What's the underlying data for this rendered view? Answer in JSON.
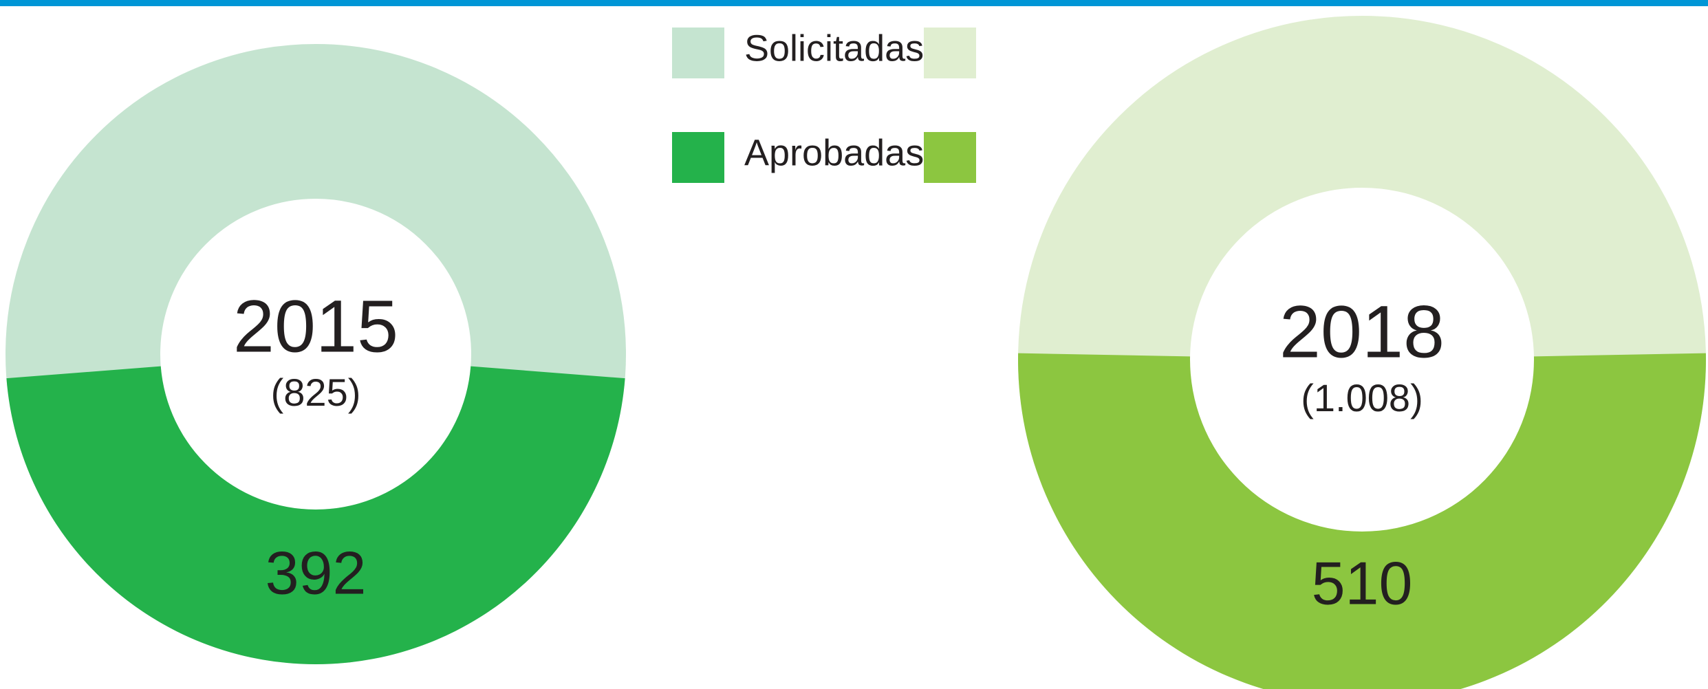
{
  "legend": {
    "labels": [
      "Solicitadas",
      "Aprobadas"
    ]
  },
  "chart_data": [
    {
      "type": "pie",
      "title": "2015",
      "categories": [
        "Solicitadas",
        "Aprobadas"
      ],
      "values": [
        825,
        392
      ],
      "value_labels": [
        "(825)",
        "392"
      ],
      "colors": [
        "#c5e4d0",
        "#24b24b"
      ]
    },
    {
      "type": "pie",
      "title": "2018",
      "categories": [
        "Solicitadas",
        "Aprobadas"
      ],
      "values": [
        1008,
        510
      ],
      "value_labels": [
        "(1.008)",
        "510"
      ],
      "colors": [
        "#e0eed0",
        "#8cc640"
      ]
    }
  ]
}
